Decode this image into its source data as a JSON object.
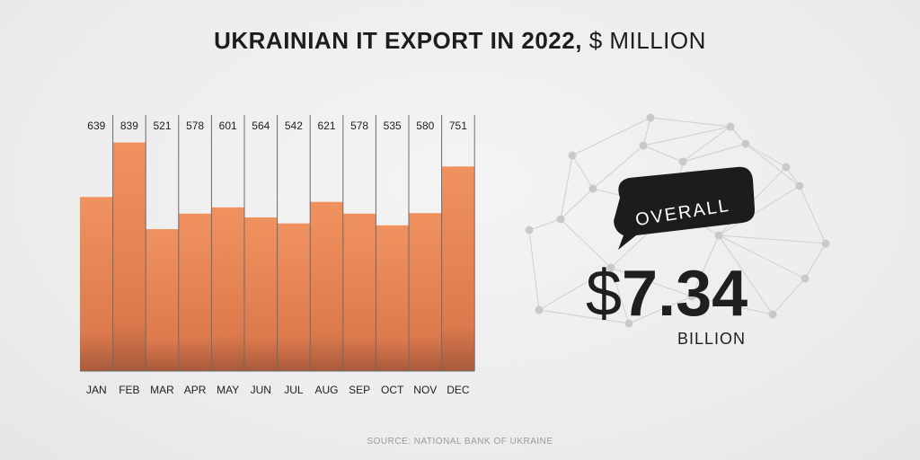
{
  "title": {
    "bold": "UKRAINIAN IT EXPORT IN 2022,",
    "light": "$ MILLION"
  },
  "chart_data": {
    "type": "bar",
    "categories": [
      "JAN",
      "FEB",
      "MAR",
      "APR",
      "MAY",
      "JUN",
      "JUL",
      "AUG",
      "SEP",
      "OCT",
      "NOV",
      "DEC"
    ],
    "values": [
      639,
      839,
      521,
      578,
      601,
      564,
      542,
      621,
      578,
      535,
      580,
      751
    ],
    "bar_color": "#e8875a"
  },
  "summary": {
    "badge": "OVERALL",
    "currency": "$",
    "value": "7.34",
    "unit": "BILLION"
  },
  "source": "SOURCE: NATIONAL BANK OF UKRAINE",
  "colors": {
    "bubble": "#1c1c1c",
    "text": "#1f1f1f",
    "globe": "#c8c8c8"
  }
}
